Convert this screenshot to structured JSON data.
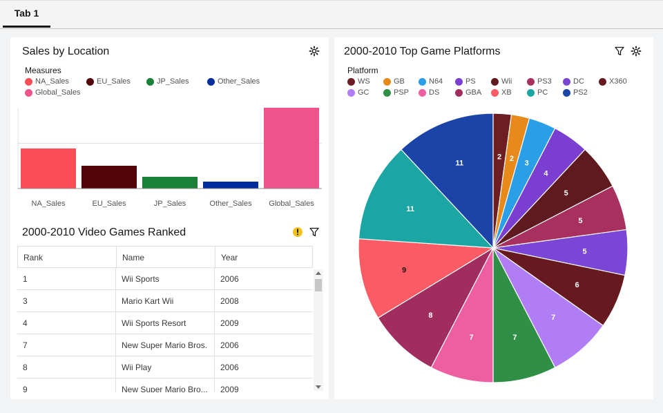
{
  "tabs": [
    {
      "label": "Tab 1"
    }
  ],
  "bar_panel": {
    "title": "Sales by Location",
    "legend_title": "Measures",
    "legend": [
      {
        "label": "NA_Sales",
        "color": "#fa4d56"
      },
      {
        "label": "EU_Sales",
        "color": "#520408"
      },
      {
        "label": "JP_Sales",
        "color": "#198038"
      },
      {
        "label": "Other_Sales",
        "color": "#002d9c"
      },
      {
        "label": "Global_Sales",
        "color": "#ee538b"
      }
    ]
  },
  "table_panel": {
    "title": "2000-2010 Video Games Ranked",
    "columns": [
      "Rank",
      "Name",
      "Year"
    ],
    "rows": [
      [
        "1",
        "Wii Sports",
        "2006"
      ],
      [
        "3",
        "Mario Kart Wii",
        "2008"
      ],
      [
        "4",
        "Wii Sports Resort",
        "2009"
      ],
      [
        "7",
        "New Super Mario Bros.",
        "2006"
      ],
      [
        "8",
        "Wii Play",
        "2006"
      ],
      [
        "9",
        "New Super Mario Bro...",
        "2009"
      ]
    ]
  },
  "pie_panel": {
    "title": "2000-2010 Top Game Platforms",
    "legend_title": "Platform"
  },
  "chart_data": [
    {
      "type": "bar",
      "title": "Sales by Location",
      "categories": [
        "NA_Sales",
        "EU_Sales",
        "JP_Sales",
        "Other_Sales",
        "Global_Sales"
      ],
      "values": [
        58,
        33,
        17,
        10,
        117
      ],
      "colors": [
        "#fa4d56",
        "#520408",
        "#198038",
        "#002d9c",
        "#ee538b"
      ],
      "ylim": [
        0,
        117
      ],
      "grid": true,
      "legend_position": "top-left"
    },
    {
      "type": "pie",
      "title": "2000-2010 Top Game Platforms",
      "legend_position": "top-left",
      "legend": [
        {
          "label": "WS",
          "color": "#6e1e22"
        },
        {
          "label": "GB",
          "color": "#e8891c"
        },
        {
          "label": "N64",
          "color": "#2a9fe8"
        },
        {
          "label": "PS",
          "color": "#7a3fd0"
        },
        {
          "label": "Wii",
          "color": "#5e1a1e"
        },
        {
          "label": "PS3",
          "color": "#a8305e"
        },
        {
          "label": "DC",
          "color": "#7b45d6"
        },
        {
          "label": "X360",
          "color": "#661a1f"
        },
        {
          "label": "GC",
          "color": "#b07df5"
        },
        {
          "label": "PSP",
          "color": "#2f8f47"
        },
        {
          "label": "DS",
          "color": "#ee5fa1"
        },
        {
          "label": "GBA",
          "color": "#a12c5e"
        },
        {
          "label": "XB",
          "color": "#fa5b64"
        },
        {
          "label": "PC",
          "color": "#1ca6a3"
        },
        {
          "label": "PS2",
          "color": "#1a44a8"
        }
      ],
      "slices": [
        {
          "label": "WS",
          "value": 2,
          "color": "#6e1e22"
        },
        {
          "label": "GB",
          "value": 2,
          "color": "#e8891c"
        },
        {
          "label": "N64",
          "value": 3,
          "color": "#2a9fe8"
        },
        {
          "label": "PS",
          "value": 4,
          "color": "#7a3fd0"
        },
        {
          "label": "Wii",
          "value": 5,
          "color": "#5e1a1e"
        },
        {
          "label": "PS3",
          "value": 5,
          "color": "#a8305e"
        },
        {
          "label": "DC",
          "value": 5,
          "color": "#7b45d6"
        },
        {
          "label": "X360",
          "value": 6,
          "color": "#661a1f"
        },
        {
          "label": "GC",
          "value": 7,
          "color": "#b07df5"
        },
        {
          "label": "PSP",
          "value": 7,
          "color": "#2f8f47"
        },
        {
          "label": "DS",
          "value": 7,
          "color": "#ee5fa1"
        },
        {
          "label": "GBA",
          "value": 8,
          "color": "#a12c5e"
        },
        {
          "label": "XB",
          "value": 9,
          "color": "#fa5b64"
        },
        {
          "label": "PC",
          "value": 11,
          "color": "#1ca6a3"
        },
        {
          "label": "PS2",
          "value": 11,
          "color": "#1a44a8"
        }
      ]
    }
  ],
  "icons": {
    "settings": "gear-icon",
    "filter": "filter-icon",
    "warning": "warning-icon"
  }
}
